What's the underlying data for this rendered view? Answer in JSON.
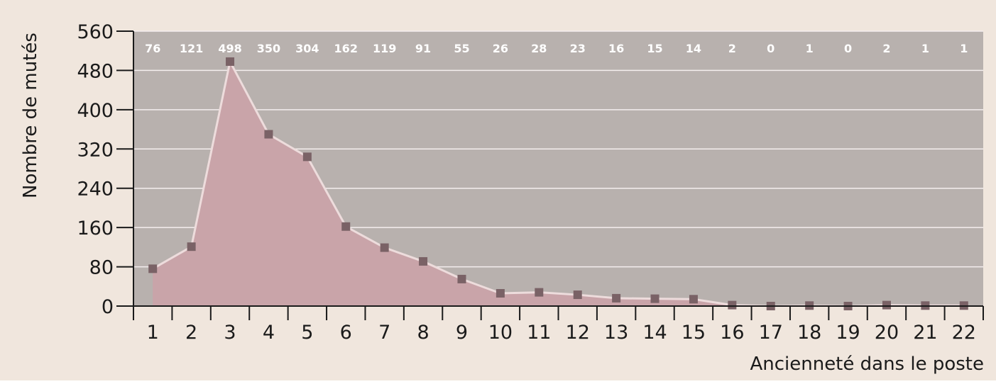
{
  "chart_data": {
    "type": "area",
    "title": "",
    "xlabel": "Ancienneté dans le poste",
    "ylabel": "Nombre de mutés",
    "categories": [
      "1",
      "2",
      "3",
      "4",
      "5",
      "6",
      "7",
      "8",
      "9",
      "10",
      "11",
      "12",
      "13",
      "14",
      "15",
      "16",
      "17",
      "18",
      "19",
      "20",
      "21",
      "22"
    ],
    "values": [
      76,
      121,
      498,
      350,
      304,
      162,
      119,
      91,
      55,
      26,
      28,
      23,
      16,
      15,
      14,
      2,
      0,
      1,
      0,
      2,
      1,
      1
    ],
    "data_labels": [
      "76",
      "121",
      "498",
      "350",
      "304",
      "162",
      "119",
      "91",
      "55",
      "26",
      "28",
      "23",
      "16",
      "15",
      "14",
      "2",
      "0",
      "1",
      "0",
      "2",
      "1",
      "1"
    ],
    "ylim": [
      0,
      560
    ],
    "yticks": [
      0,
      80,
      160,
      240,
      320,
      400,
      480,
      560
    ],
    "ytick_labels": [
      "0",
      "80",
      "160",
      "240",
      "320",
      "400",
      "480",
      "560"
    ],
    "grid": "horizontal",
    "legend": "none",
    "colors": {
      "page_background": "#f0e6dd",
      "plot_background": "#b8b1ae",
      "area_fill": "#c9a4a9",
      "line": "#eddcdc",
      "marker": "#7a6266",
      "gridline": "#f4eeee",
      "data_label_text": "#ffffff",
      "axis": "#1a1a1a"
    }
  }
}
